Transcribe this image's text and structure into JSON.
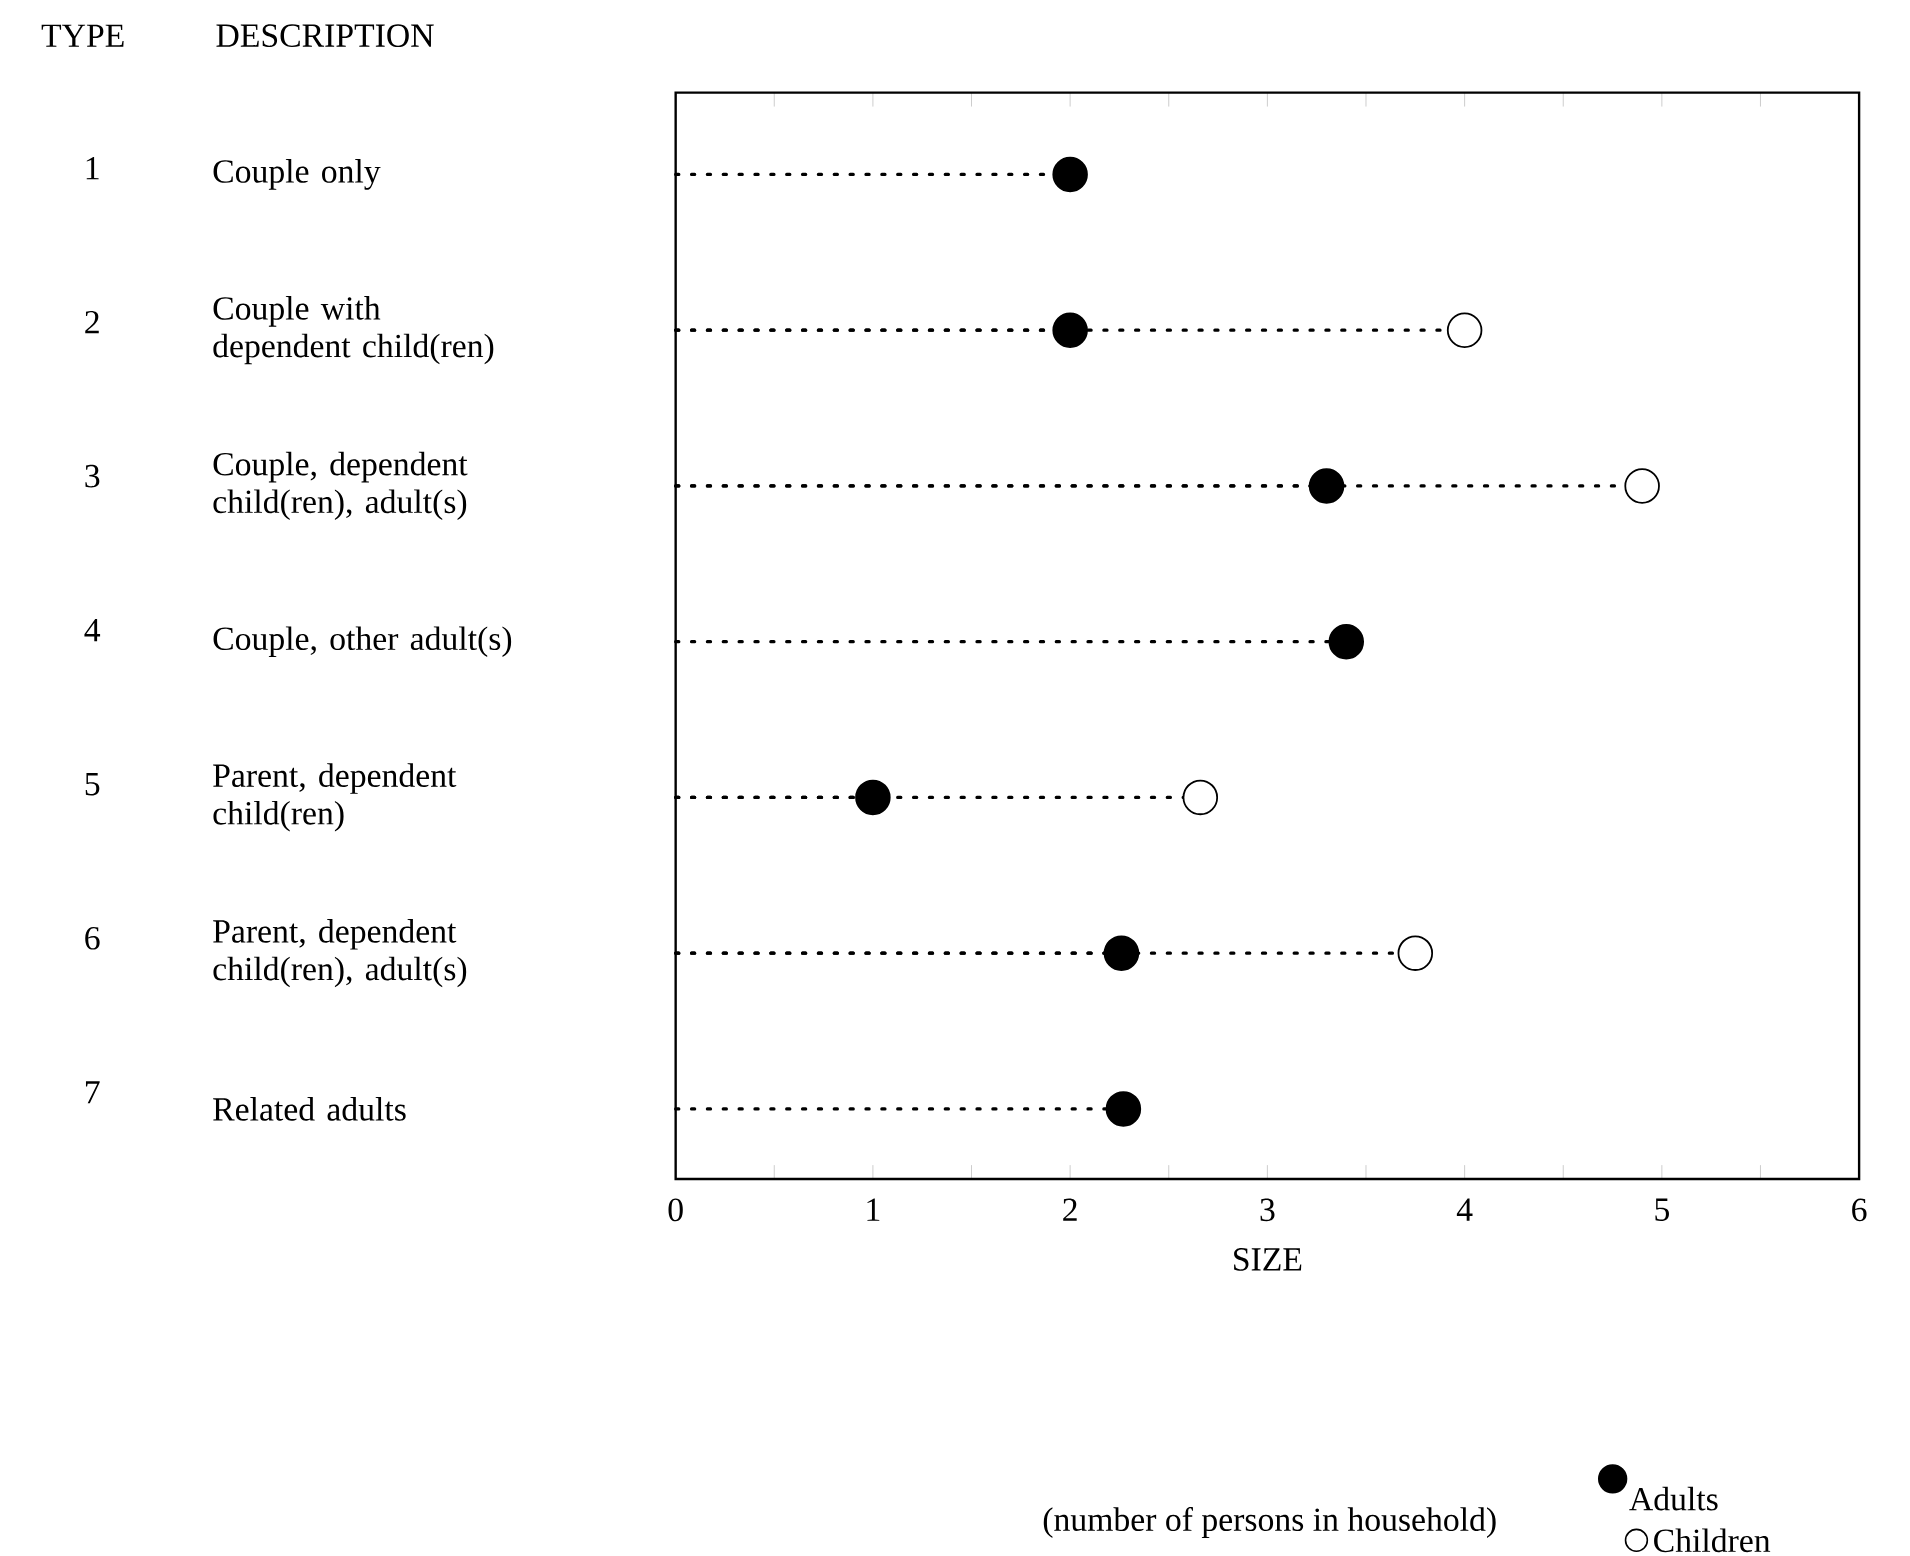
{
  "chart_data": {
    "type": "lollipop",
    "orientation": "horizontal",
    "categories": [
      "Couple only",
      "Couple with dependent child(ren)",
      "Couple, dependent child(ren), adult(s)",
      "Couple, other adult(s)",
      "Parent, dependent child(ren)",
      "Parent, dependent child(ren), adult(s)",
      "Related adults"
    ],
    "series": [
      {
        "name": "Adults",
        "color": "#000000",
        "values": [
          2.0,
          2.0,
          3.3,
          3.4,
          1.0,
          2.26,
          2.27
        ]
      },
      {
        "name": "Children",
        "color": "#ffffff",
        "values": [
          null,
          4.0,
          4.9,
          null,
          2.66,
          3.75,
          null
        ]
      }
    ],
    "xlim": [
      0,
      6
    ],
    "xticks": [
      0,
      {
        "value": 0.5,
        "label": null
      },
      1,
      {
        "value": 1.5,
        "label": null
      },
      2,
      {
        "value": 2.5,
        "label": null
      },
      3,
      {
        "value": 3.5,
        "label": null
      },
      4,
      {
        "value": 4.5,
        "label": null
      },
      5,
      {
        "value": 5.5,
        "label": null
      },
      6
    ],
    "xlabel": "SIZE",
    "annotations": [
      "TYPE",
      "DESCRIPTION",
      "1",
      "2",
      "3",
      "4",
      "5",
      "6",
      "7",
      "(number of persons in household)"
    ],
    "marker": "circle",
    "line_style": "dotted",
    "legend": "bottom right"
  }
}
